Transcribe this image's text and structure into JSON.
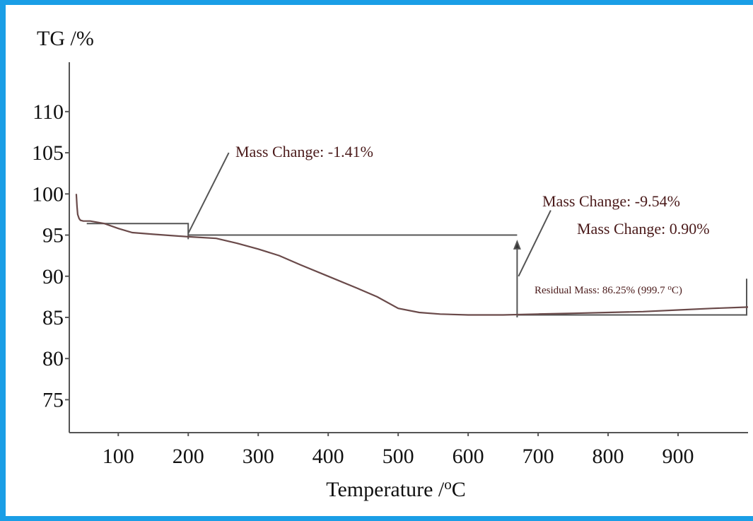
{
  "chart_data": {
    "type": "line",
    "ylabel": "TG /%",
    "xlabel_main": "Temperature /",
    "xlabel_unit_sup": "o",
    "xlabel_unit": "C",
    "xlim": [
      30,
      1000
    ],
    "ylim": [
      71,
      116
    ],
    "x_ticks": [
      100,
      200,
      300,
      400,
      500,
      600,
      700,
      800,
      900
    ],
    "y_ticks": [
      75,
      80,
      85,
      90,
      95,
      100,
      105,
      110
    ],
    "series": [
      {
        "x": [
          40,
          41,
          42,
          44,
          46,
          50,
          60,
          80,
          100,
          120,
          150,
          200,
          240,
          270,
          300,
          330,
          360,
          400,
          440,
          470,
          500,
          530,
          560,
          600,
          650,
          700,
          750,
          800,
          850,
          900,
          950,
          1000
        ],
        "y": [
          100.0,
          98.5,
          97.5,
          97.0,
          96.8,
          96.7,
          96.7,
          96.4,
          95.8,
          95.3,
          95.1,
          94.8,
          94.6,
          94.0,
          93.3,
          92.5,
          91.4,
          90.0,
          88.6,
          87.5,
          86.1,
          85.6,
          85.4,
          85.3,
          85.3,
          85.4,
          85.5,
          85.6,
          85.7,
          85.9,
          86.1,
          86.25
        ]
      }
    ],
    "annotations": [
      {
        "text": "Mass Change: -1.41%"
      },
      {
        "text": "Mass Change: -9.54%"
      },
      {
        "text": "Mass Change: 0.90%"
      },
      {
        "text": "Residual Mass: 86.25% (999.7 ",
        "sup": "o",
        "suffix": "C)"
      }
    ]
  }
}
